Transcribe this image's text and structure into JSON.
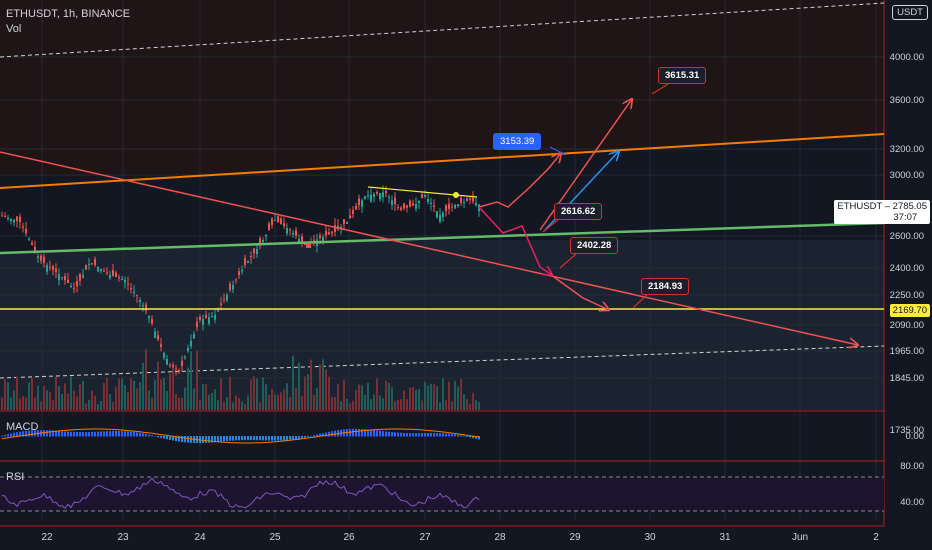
{
  "header": {
    "symbol_line": "ETHUSDT, 1h, BINANCE",
    "vol_label": "Vol"
  },
  "price_axis": {
    "currency": "USDT",
    "labels": [
      "4000.00",
      "3600.00",
      "3200.00",
      "3000.00",
      "2600.00",
      "2400.00",
      "2250.00",
      "2090.00",
      "1965.00",
      "1845.00",
      "1735.00"
    ],
    "current_symbol": "ETHUSDT",
    "current_price": "2785.05",
    "countdown": "37:07",
    "level_price": "2169.70"
  },
  "macd_panel": {
    "label": "MACD",
    "axis": "0.00"
  },
  "rsi_panel": {
    "label": "RSI",
    "axis_top": "80.00",
    "axis_bottom": "40.00"
  },
  "date_axis": [
    "22",
    "23",
    "24",
    "25",
    "26",
    "27",
    "28",
    "29",
    "30",
    "31",
    "Jun",
    "2"
  ],
  "annotations": {
    "target_high": "3615.31",
    "target_mid": "3153.39",
    "support_a": "2616.62",
    "support_b": "2402.28",
    "support_c": "2184.93"
  },
  "colors": {
    "background": "#131722",
    "upper_zone": "#1f1416",
    "mid_zone": "#1e2632",
    "orange_line": "#f57c00",
    "green_line": "#66bb6a",
    "yellow_line": "#ffeb3b",
    "red_arrows": "#ef5350",
    "pink_arrows": "#e91e63",
    "blue_arrow": "#2196f3",
    "candle_up": "#26a69a",
    "candle_down": "#ef5350",
    "rsi_line": "#7e57c2"
  }
}
